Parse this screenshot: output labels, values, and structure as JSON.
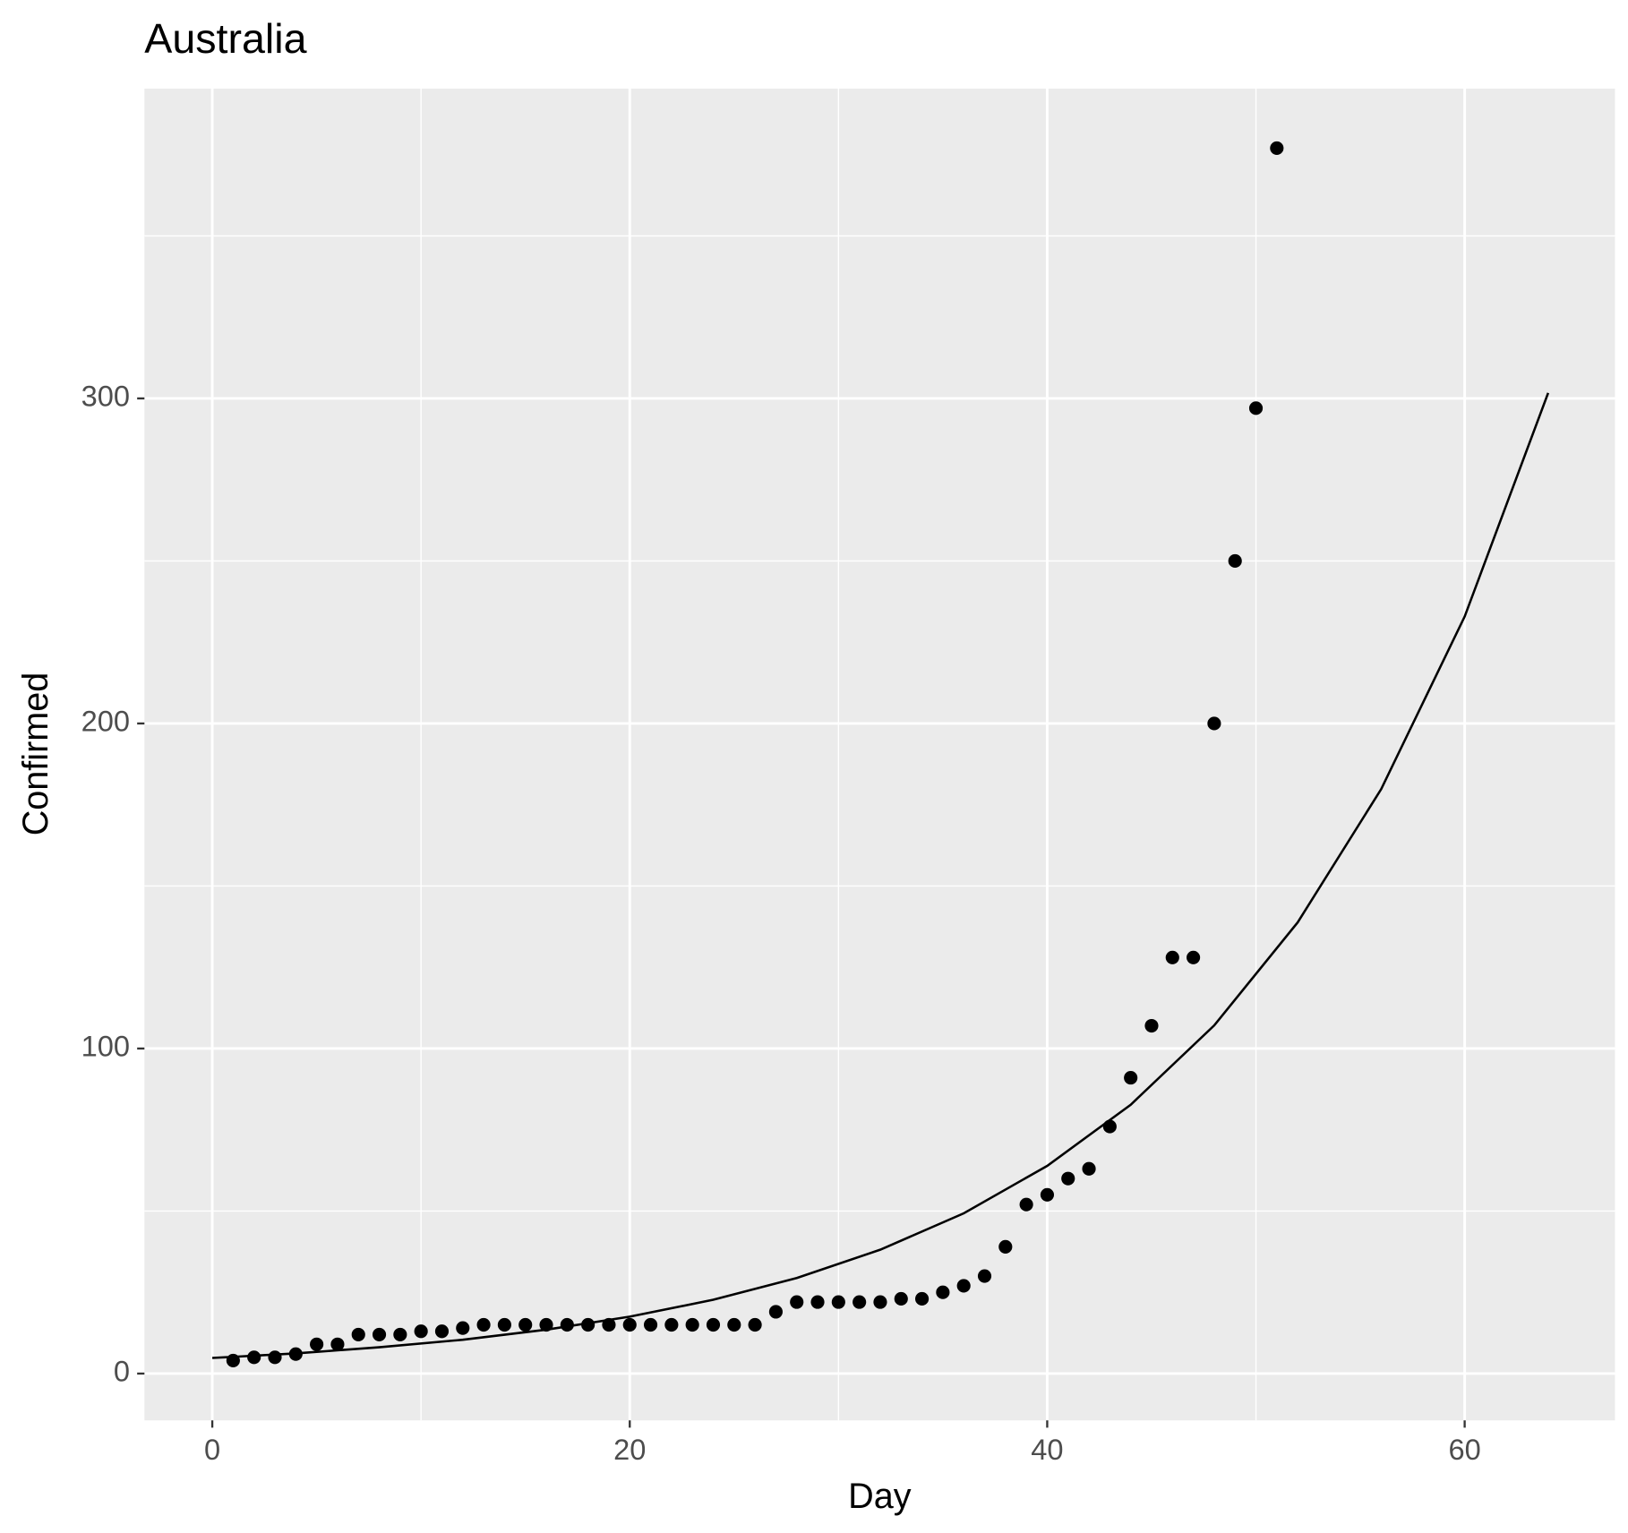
{
  "chart_data": {
    "type": "scatter",
    "title": "Australia",
    "x_label": "Day",
    "y_label": "Confirmed",
    "xlim": [
      -3.25,
      67.2
    ],
    "ylim": [
      -14.4,
      395.3
    ],
    "xticks": [
      0,
      20,
      40,
      60
    ],
    "yticks": [
      0,
      100,
      200,
      300
    ],
    "xminor": [
      10,
      30,
      50
    ],
    "yminor": [
      50,
      150,
      250,
      350
    ],
    "grid": true,
    "points": {
      "color": "#000000",
      "x": [
        1,
        2,
        3,
        4,
        5,
        6,
        7,
        8,
        9,
        10,
        11,
        12,
        13,
        14,
        15,
        16,
        17,
        18,
        19,
        20,
        21,
        22,
        23,
        24,
        25,
        26,
        27,
        28,
        29,
        30,
        31,
        32,
        33,
        34,
        35,
        36,
        37,
        38,
        39,
        40,
        41,
        42,
        43,
        44,
        45,
        46,
        47,
        48,
        49,
        50,
        51
      ],
      "values": [
        4,
        5,
        5,
        6,
        9,
        9,
        12,
        12,
        12,
        13,
        13,
        14,
        15,
        15,
        15,
        15,
        15,
        15,
        15,
        15,
        15,
        15,
        15,
        15,
        15,
        15,
        19,
        22,
        22,
        22,
        22,
        22,
        23,
        23,
        25,
        27,
        30,
        39,
        52,
        55,
        60,
        63,
        76,
        91,
        107,
        128,
        128,
        200,
        250,
        297,
        377
      ]
    },
    "fit": {
      "color": "#000000",
      "x": [
        0,
        4,
        8,
        12,
        16,
        20,
        24,
        28,
        32,
        36,
        40,
        44,
        48,
        52,
        56,
        60,
        64
      ],
      "values": [
        4.8,
        6.2,
        8.1,
        10.4,
        13.5,
        17.5,
        22.7,
        29.4,
        38.1,
        49.3,
        63.9,
        82.7,
        107.1,
        138.8,
        179.8,
        232.9,
        301.7
      ]
    }
  }
}
